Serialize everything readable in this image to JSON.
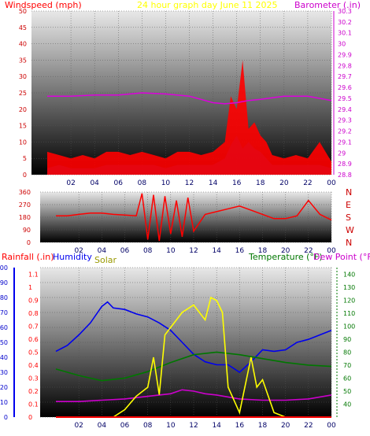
{
  "colors": {
    "wind": "#ff0000",
    "gust_baro": "#cc00cc",
    "baro": "#dd00dd",
    "humidity": "#0000ee",
    "solar": "#ffff00",
    "solar_label": "#999900",
    "temperature": "#007700",
    "dewpoint": "#cc00cc",
    "rain": "#ff0000",
    "grid": "#555555",
    "panel_top": "#e8e8e8",
    "panel_bottom": "#000000"
  },
  "chart_data": [
    {
      "type": "line",
      "title": "24 hour graph day   June 11 2025",
      "left_label": "Windspeed (mph)",
      "right_label": "Barometer (.in)",
      "y_left_ticks": [
        "0",
        "5",
        "10",
        "15",
        "20",
        "25",
        "30",
        "35",
        "40",
        "45",
        "50"
      ],
      "y_right_ticks": [
        "28.8",
        "28.9",
        "29",
        "29.1",
        "29.2",
        "29.3",
        "29.4",
        "29.5",
        "29.6",
        "29.7",
        "29.8",
        "29.9",
        "30",
        "30.1",
        "30.2",
        "30.3"
      ],
      "ylim_left": [
        0,
        50
      ],
      "ylim_right": [
        28.8,
        30.3
      ],
      "x_ticks": [
        "02",
        "04",
        "06",
        "08",
        "10",
        "12",
        "14",
        "16",
        "18",
        "20",
        "22",
        "00"
      ],
      "series": [
        {
          "name": "Windspeed",
          "x": [
            0,
            1,
            2,
            3,
            4,
            5,
            6,
            7,
            8,
            9,
            10,
            11,
            12,
            13,
            14,
            15,
            15.5,
            16,
            16.5,
            17,
            17.5,
            18,
            18.5,
            19,
            20,
            21,
            22,
            23,
            24
          ],
          "values": [
            2,
            3,
            2,
            2,
            2,
            3,
            3,
            3,
            3,
            3,
            2,
            3,
            3,
            3,
            3,
            5,
            9,
            12,
            8,
            10,
            8,
            7,
            5,
            3,
            3,
            3,
            3,
            3,
            2
          ]
        },
        {
          "name": "Gust",
          "x": [
            0,
            1,
            2,
            3,
            4,
            5,
            6,
            7,
            8,
            9,
            10,
            11,
            12,
            13,
            14,
            15,
            15.5,
            16,
            16.5,
            17,
            17.5,
            18,
            18.5,
            19,
            20,
            21,
            22,
            23,
            24
          ],
          "values": [
            7,
            6,
            5,
            6,
            5,
            7,
            7,
            6,
            7,
            6,
            5,
            7,
            7,
            6,
            7,
            10,
            24,
            20,
            35,
            14,
            16,
            12,
            10,
            6,
            5,
            6,
            5,
            10,
            4
          ]
        },
        {
          "name": "Barometer",
          "x": [
            0,
            2,
            4,
            6,
            8,
            10,
            12,
            13,
            14,
            15,
            16,
            17,
            18,
            20,
            22,
            24
          ],
          "values": [
            29.52,
            29.52,
            29.53,
            29.53,
            29.55,
            29.54,
            29.52,
            29.49,
            29.46,
            29.45,
            29.46,
            29.48,
            29.49,
            29.52,
            29.52,
            29.48
          ]
        }
      ]
    },
    {
      "type": "scatter",
      "left_label": "",
      "y_left_ticks": [
        "0",
        "90",
        "180",
        "270",
        "360"
      ],
      "y_right_ticks": [
        "N",
        "W",
        "S",
        "E",
        "N"
      ],
      "ylim_left": [
        0,
        360
      ],
      "x_ticks": [
        "02",
        "04",
        "06",
        "08",
        "10",
        "12",
        "14",
        "16",
        "18",
        "20",
        "22",
        "00"
      ],
      "series": [
        {
          "name": "Wind Direction",
          "x": [
            0,
            1,
            2,
            3,
            4,
            5,
            6,
            7,
            7.5,
            8,
            8.5,
            9,
            9.5,
            10,
            10.5,
            11,
            11.5,
            12,
            13,
            14,
            15,
            16,
            17,
            18,
            19,
            20,
            21,
            22,
            23,
            24
          ],
          "values": [
            190,
            190,
            200,
            210,
            210,
            200,
            195,
            190,
            350,
            20,
            340,
            10,
            330,
            60,
            300,
            40,
            320,
            80,
            200,
            220,
            240,
            260,
            230,
            200,
            170,
            170,
            190,
            300,
            200,
            160
          ]
        }
      ]
    },
    {
      "type": "line",
      "left_label": "Rainfall (.in)",
      "second_label": "Humidity",
      "solar_label": "Solar",
      "right_label": "Temperature (°F)",
      "right_label2": "Dew Point (°F)",
      "y_left_ticks": [
        "0",
        "10",
        "20",
        "30",
        "40",
        "50",
        "60",
        "70",
        "80",
        "90",
        "100"
      ],
      "y_rain_ticks": [
        "0",
        "0.1",
        "0.2",
        "0.3",
        "0.4",
        "0.5",
        "0.6",
        "0.7",
        "0.8",
        "0.9",
        "1",
        "1.1"
      ],
      "y_right_ticks": [
        "40",
        "50",
        "60",
        "70",
        "80",
        "90",
        "100",
        "110",
        "120",
        "130",
        "140"
      ],
      "ylim_left": [
        0,
        100
      ],
      "ylim_right": [
        30,
        145
      ],
      "x_ticks": [
        "02",
        "04",
        "06",
        "08",
        "10",
        "12",
        "14",
        "16",
        "18",
        "20",
        "22",
        "00"
      ],
      "series": [
        {
          "name": "Humidity",
          "x": [
            0,
            1,
            2,
            3,
            4,
            4.5,
            5,
            6,
            7,
            8,
            9,
            10,
            11,
            12,
            13,
            14,
            15,
            16,
            17,
            18,
            19,
            20,
            21,
            22,
            23,
            24
          ],
          "values": [
            44,
            48,
            55,
            63,
            74,
            77,
            73,
            72,
            69,
            67,
            63,
            58,
            50,
            42,
            37,
            35,
            35,
            30,
            37,
            45,
            44,
            45,
            50,
            52,
            55,
            58
          ]
        },
        {
          "name": "Temperature",
          "x": [
            0,
            2,
            4,
            6,
            8,
            10,
            12,
            14,
            16,
            18,
            20,
            22,
            24
          ],
          "values": [
            67,
            62,
            58,
            60,
            65,
            72,
            78,
            80,
            78,
            75,
            72,
            70,
            69
          ]
        },
        {
          "name": "Dew Point",
          "x": [
            0,
            2,
            4,
            6,
            8,
            10,
            11,
            12,
            13,
            14,
            16,
            18,
            20,
            22,
            24
          ],
          "values": [
            42,
            42,
            43,
            44,
            46,
            48,
            51,
            50,
            48,
            47,
            44,
            43,
            43,
            44,
            47
          ]
        },
        {
          "name": "Solar",
          "x": [
            0,
            5,
            6,
            7,
            8,
            8.5,
            9,
            9.5,
            10,
            11,
            12,
            13,
            13.5,
            14,
            14.5,
            15,
            16,
            17,
            17.5,
            18,
            19,
            20,
            24
          ],
          "values": [
            0,
            0,
            5,
            14,
            20,
            40,
            15,
            55,
            60,
            70,
            75,
            65,
            80,
            78,
            70,
            20,
            3,
            40,
            20,
            25,
            3,
            0,
            0
          ]
        },
        {
          "name": "Rainfall",
          "x": [
            0,
            24
          ],
          "values": [
            0,
            0
          ]
        }
      ]
    }
  ]
}
